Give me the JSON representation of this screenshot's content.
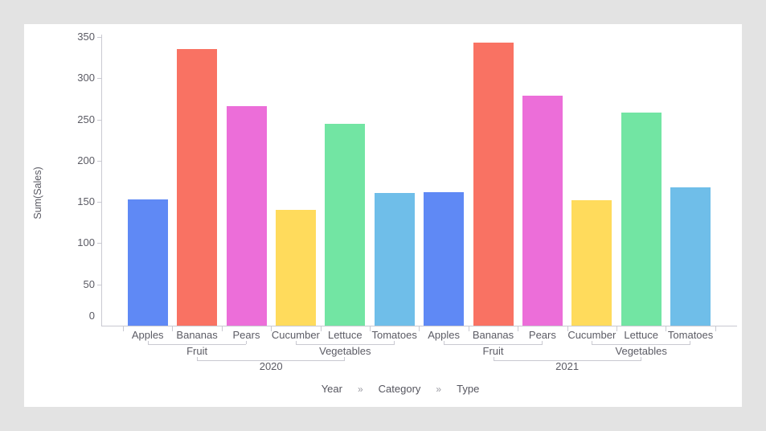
{
  "page": {
    "background_color": "#e3e3e3",
    "card_color": "#ffffff"
  },
  "breadcrumb": {
    "items": [
      "Year",
      "Category",
      "Type"
    ],
    "separator": "»"
  },
  "chart_data": {
    "type": "bar",
    "title": "",
    "xlabel": "",
    "ylabel": "Sum(Sales)",
    "ylim": [
      0,
      350
    ],
    "yticks": [
      0,
      50,
      100,
      150,
      200,
      250,
      300,
      350
    ],
    "grid": false,
    "legend": false,
    "axis_color": "#c9c9d1",
    "label_color": "#5b5b64",
    "hierarchy_levels": [
      "Year",
      "Category",
      "Type"
    ],
    "groups": [
      {
        "year": "2020",
        "categories": [
          {
            "name": "Fruit",
            "types": [
              "Apples",
              "Bananas",
              "Pears"
            ],
            "values": [
              153,
              335,
              266
            ]
          },
          {
            "name": "Vegetables",
            "types": [
              "Cucumber",
              "Lettuce",
              "Tomatoes"
            ],
            "values": [
              140,
              245,
              161
            ]
          }
        ]
      },
      {
        "year": "2021",
        "categories": [
          {
            "name": "Fruit",
            "types": [
              "Apples",
              "Bananas",
              "Pears"
            ],
            "values": [
              162,
              343,
              279
            ]
          },
          {
            "name": "Vegetables",
            "types": [
              "Cucumber",
              "Lettuce",
              "Tomatoes"
            ],
            "values": [
              152,
              258,
              168
            ]
          }
        ]
      }
    ],
    "series_colors": {
      "Apples": "#5f89f5",
      "Bananas": "#f97263",
      "Pears": "#ec6ed9",
      "Cucumber": "#ffdb5c",
      "Lettuce": "#72e5a3",
      "Tomatoes": "#6fbee9"
    }
  }
}
